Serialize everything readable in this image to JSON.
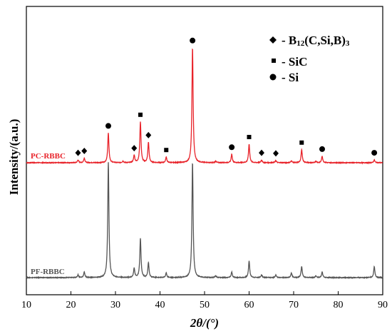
{
  "chart_data": {
    "type": "line",
    "xlabel": "2θ/(°)",
    "ylabel": "Intensity/(a.u.)",
    "xlim": [
      10,
      90
    ],
    "xticks": [
      "10",
      "20",
      "30",
      "40",
      "50",
      "60",
      "70",
      "80",
      "90"
    ],
    "grid": false,
    "legend_position": "top-right",
    "legend": [
      {
        "marker": "diamond",
        "label_main": "- B",
        "label_sub1": "12",
        "label_mid": "(C,Si,B)",
        "label_sub2": "3"
      },
      {
        "marker": "square",
        "label": "- SiC"
      },
      {
        "marker": "circle",
        "label": "- Si"
      }
    ],
    "series": [
      {
        "name": "PC-RBBC",
        "color": "#e8232a",
        "baseline": 0,
        "peaks": [
          {
            "x": 21.6,
            "y": 1.5
          },
          {
            "x": 23.0,
            "y": 2.5
          },
          {
            "x": 28.4,
            "y": 16
          },
          {
            "x": 31.7,
            "y": 0.8
          },
          {
            "x": 34.2,
            "y": 4
          },
          {
            "x": 35.6,
            "y": 22
          },
          {
            "x": 37.4,
            "y": 11
          },
          {
            "x": 41.4,
            "y": 3
          },
          {
            "x": 47.3,
            "y": 62
          },
          {
            "x": 52.5,
            "y": 0.8
          },
          {
            "x": 56.1,
            "y": 4.5
          },
          {
            "x": 60.0,
            "y": 10
          },
          {
            "x": 62.8,
            "y": 1.5
          },
          {
            "x": 66.0,
            "y": 1.2
          },
          {
            "x": 69.5,
            "y": 1.0
          },
          {
            "x": 71.8,
            "y": 7
          },
          {
            "x": 75.0,
            "y": 0.8
          },
          {
            "x": 76.4,
            "y": 3.5
          },
          {
            "x": 88.1,
            "y": 1.5
          }
        ],
        "markers": [
          {
            "x": 21.6,
            "y": 1.5,
            "shape": "diamond"
          },
          {
            "x": 23.0,
            "y": 2.5,
            "shape": "diamond"
          },
          {
            "x": 28.4,
            "y": 16,
            "shape": "circle"
          },
          {
            "x": 34.2,
            "y": 4,
            "shape": "diamond"
          },
          {
            "x": 35.6,
            "y": 22,
            "shape": "square"
          },
          {
            "x": 37.4,
            "y": 11,
            "shape": "diamond"
          },
          {
            "x": 41.4,
            "y": 3,
            "shape": "square"
          },
          {
            "x": 47.3,
            "y": 62,
            "shape": "circle"
          },
          {
            "x": 56.1,
            "y": 4.5,
            "shape": "circle"
          },
          {
            "x": 60.0,
            "y": 10,
            "shape": "square"
          },
          {
            "x": 62.8,
            "y": 1.5,
            "shape": "diamond"
          },
          {
            "x": 66.0,
            "y": 1.2,
            "shape": "diamond"
          },
          {
            "x": 71.8,
            "y": 7,
            "shape": "square"
          },
          {
            "x": 76.4,
            "y": 3.5,
            "shape": "circle"
          },
          {
            "x": 88.1,
            "y": 1.5,
            "shape": "circle"
          }
        ]
      },
      {
        "name": "PF-RBBC",
        "color": "#555555",
        "baseline": 0,
        "peaks": [
          {
            "x": 21.6,
            "y": 1.5
          },
          {
            "x": 23.0,
            "y": 3
          },
          {
            "x": 28.4,
            "y": 62
          },
          {
            "x": 34.2,
            "y": 5
          },
          {
            "x": 35.6,
            "y": 21
          },
          {
            "x": 37.4,
            "y": 8
          },
          {
            "x": 41.4,
            "y": 2.5
          },
          {
            "x": 47.3,
            "y": 62
          },
          {
            "x": 52.5,
            "y": 1
          },
          {
            "x": 56.1,
            "y": 3
          },
          {
            "x": 60.0,
            "y": 9
          },
          {
            "x": 62.8,
            "y": 1.5
          },
          {
            "x": 66.0,
            "y": 1.5
          },
          {
            "x": 69.5,
            "y": 2.5
          },
          {
            "x": 71.8,
            "y": 6
          },
          {
            "x": 75.0,
            "y": 1
          },
          {
            "x": 76.4,
            "y": 3
          },
          {
            "x": 88.1,
            "y": 6
          }
        ]
      }
    ]
  }
}
